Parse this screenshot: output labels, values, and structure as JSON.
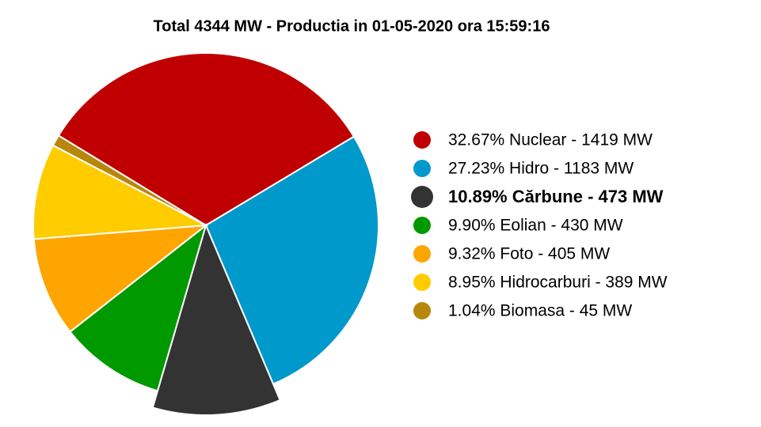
{
  "chart_data": {
    "type": "pie",
    "title": "Total 4344 MW - Productia in 01-05-2020 ora 15:59:16",
    "categories": [
      "32.67% Nuclear - 1419 MW",
      "27.23% Hidro - 1183 MW",
      "10.89% Cărbune - 473 MW",
      "9.90% Eolian - 430 MW",
      "9.32% Foto - 405 MW",
      "8.95% Hidrocarburi - 389 MW",
      "1.04% Biomasa - 45 MW"
    ],
    "values": [
      32.67,
      27.23,
      10.89,
      9.9,
      9.32,
      8.95,
      1.04
    ],
    "colors": [
      "#c00000",
      "#0099cc",
      "#333333",
      "#009900",
      "#ffa500",
      "#ffcc00",
      "#b8860b"
    ],
    "highlight": 2
  }
}
